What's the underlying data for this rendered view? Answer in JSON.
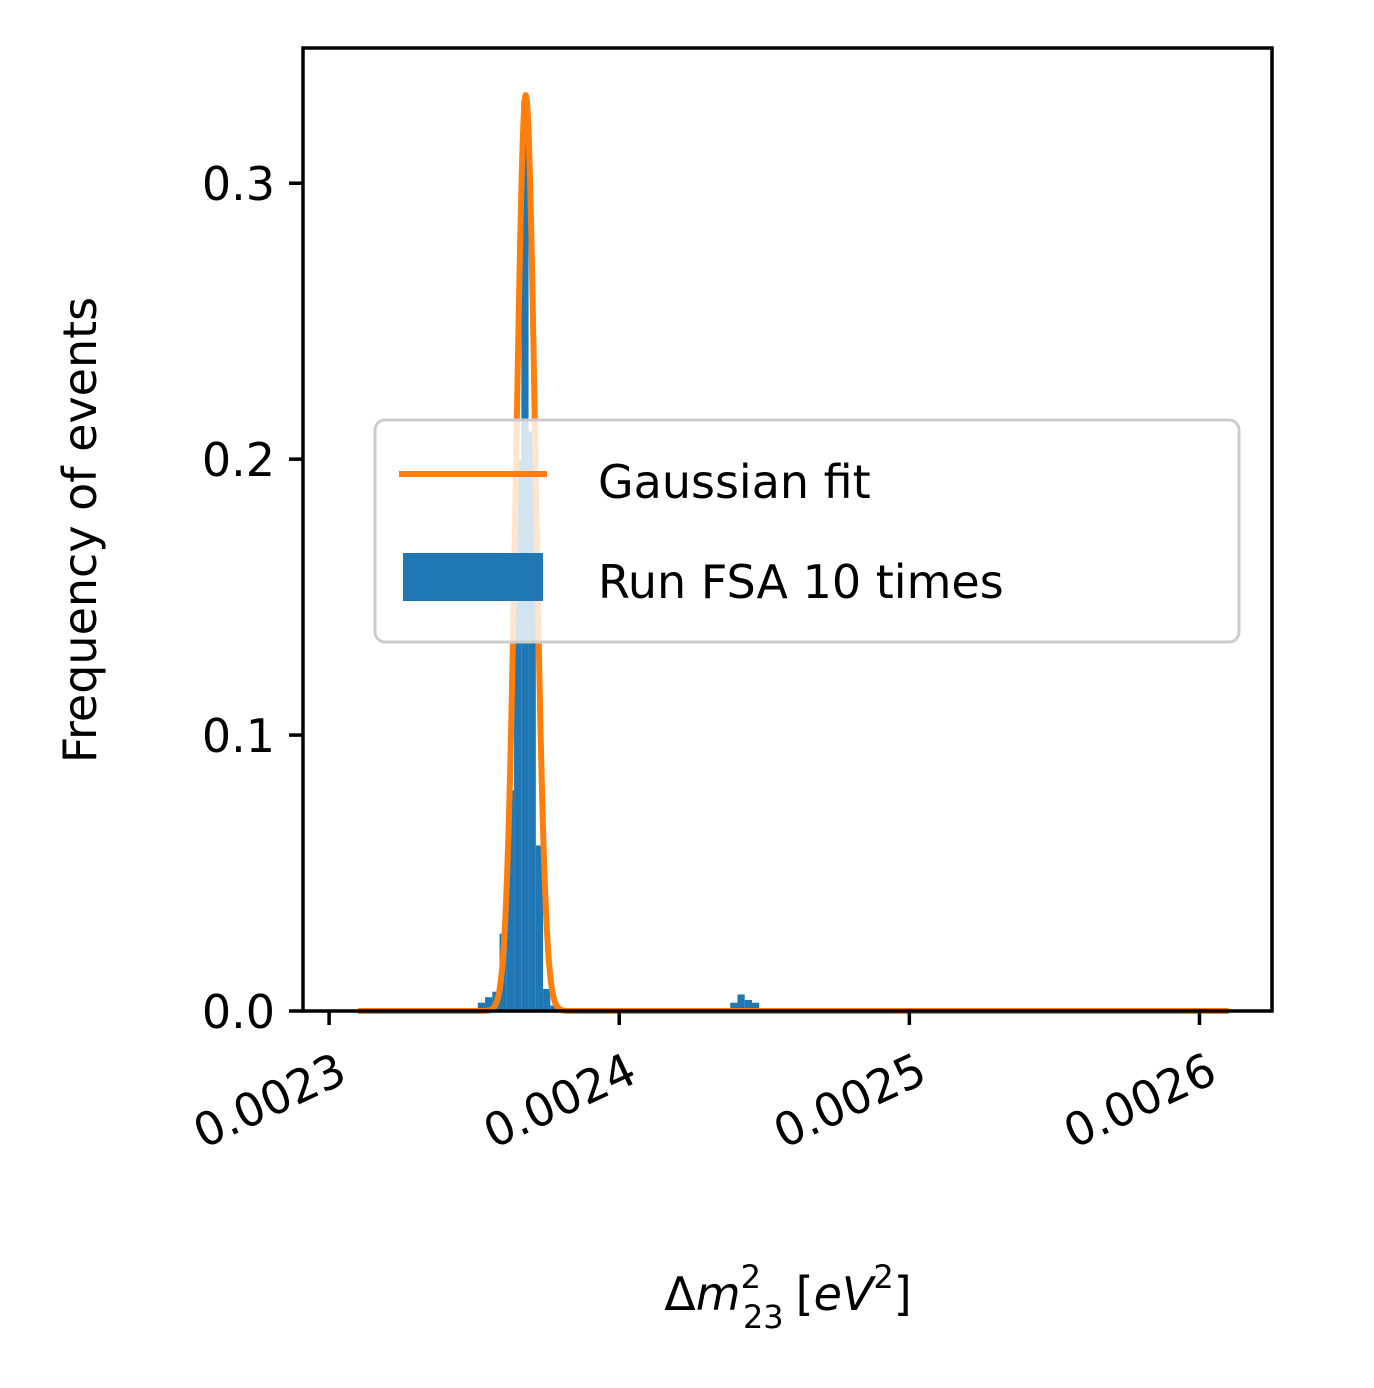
{
  "chart_data": {
    "type": "bar",
    "ylabel": "Frequency of events",
    "xlabel": {
      "delta": "Δ",
      "m": "m",
      "superscript": "2",
      "subscript": "23",
      "unit_open": "[",
      "unit_e": "e",
      "unit_V": "V",
      "unit_sup": "2",
      "unit_close": "]"
    },
    "xlim": [
      0.002291,
      0.002625
    ],
    "ylim": [
      0.0,
      0.349
    ],
    "x_ticks": [
      {
        "value": 0.0023,
        "label": "0.0023"
      },
      {
        "value": 0.0024,
        "label": "0.0024"
      },
      {
        "value": 0.0025,
        "label": "0.0025"
      },
      {
        "value": 0.0026,
        "label": "0.0026"
      }
    ],
    "y_ticks": [
      {
        "value": 0.0,
        "label": "0.0"
      },
      {
        "value": 0.1,
        "label": "0.1"
      },
      {
        "value": 0.2,
        "label": "0.2"
      },
      {
        "value": 0.3,
        "label": "0.3"
      }
    ],
    "legend": {
      "position": "center-right",
      "entries": [
        {
          "label": "Gaussian fit",
          "kind": "line",
          "color": "#ff7f0e"
        },
        {
          "label": "Run FSA 10 times",
          "kind": "patch",
          "color": "#1f77b4"
        }
      ]
    },
    "series": [
      {
        "name": "Run FSA 10 times",
        "kind": "histogram",
        "color": "#1f77b4",
        "bin_width": 2.5e-06,
        "bins": [
          {
            "x": 0.00235,
            "y": 0.001
          },
          {
            "x": 0.0023525,
            "y": 0.003
          },
          {
            "x": 0.002355,
            "y": 0.005
          },
          {
            "x": 0.0023575,
            "y": 0.007
          },
          {
            "x": 0.00236,
            "y": 0.028
          },
          {
            "x": 0.0023625,
            "y": 0.08
          },
          {
            "x": 0.002365,
            "y": 0.2
          },
          {
            "x": 0.0023675,
            "y": 0.33
          },
          {
            "x": 0.00237,
            "y": 0.21
          },
          {
            "x": 0.0023725,
            "y": 0.06
          },
          {
            "x": 0.002375,
            "y": 0.008
          },
          {
            "x": 0.0023775,
            "y": 0.002
          },
          {
            "x": 0.00238,
            "y": 0.001
          },
          {
            "x": 0.00239,
            "y": 0.0005
          },
          {
            "x": 0.002437,
            "y": 0.001
          },
          {
            "x": 0.0024395,
            "y": 0.003
          },
          {
            "x": 0.002442,
            "y": 0.006
          },
          {
            "x": 0.0024445,
            "y": 0.004
          },
          {
            "x": 0.002447,
            "y": 0.003
          },
          {
            "x": 0.0024495,
            "y": 0.001
          },
          {
            "x": 0.002452,
            "y": 0.0005
          }
        ]
      },
      {
        "name": "Gaussian fit",
        "kind": "line",
        "color": "#ff7f0e",
        "gaussian": {
          "mean": 0.0023678,
          "sigma": 3.3e-06,
          "amplitude": 0.332
        },
        "x_range": [
          0.00231,
          0.00261
        ]
      }
    ]
  }
}
